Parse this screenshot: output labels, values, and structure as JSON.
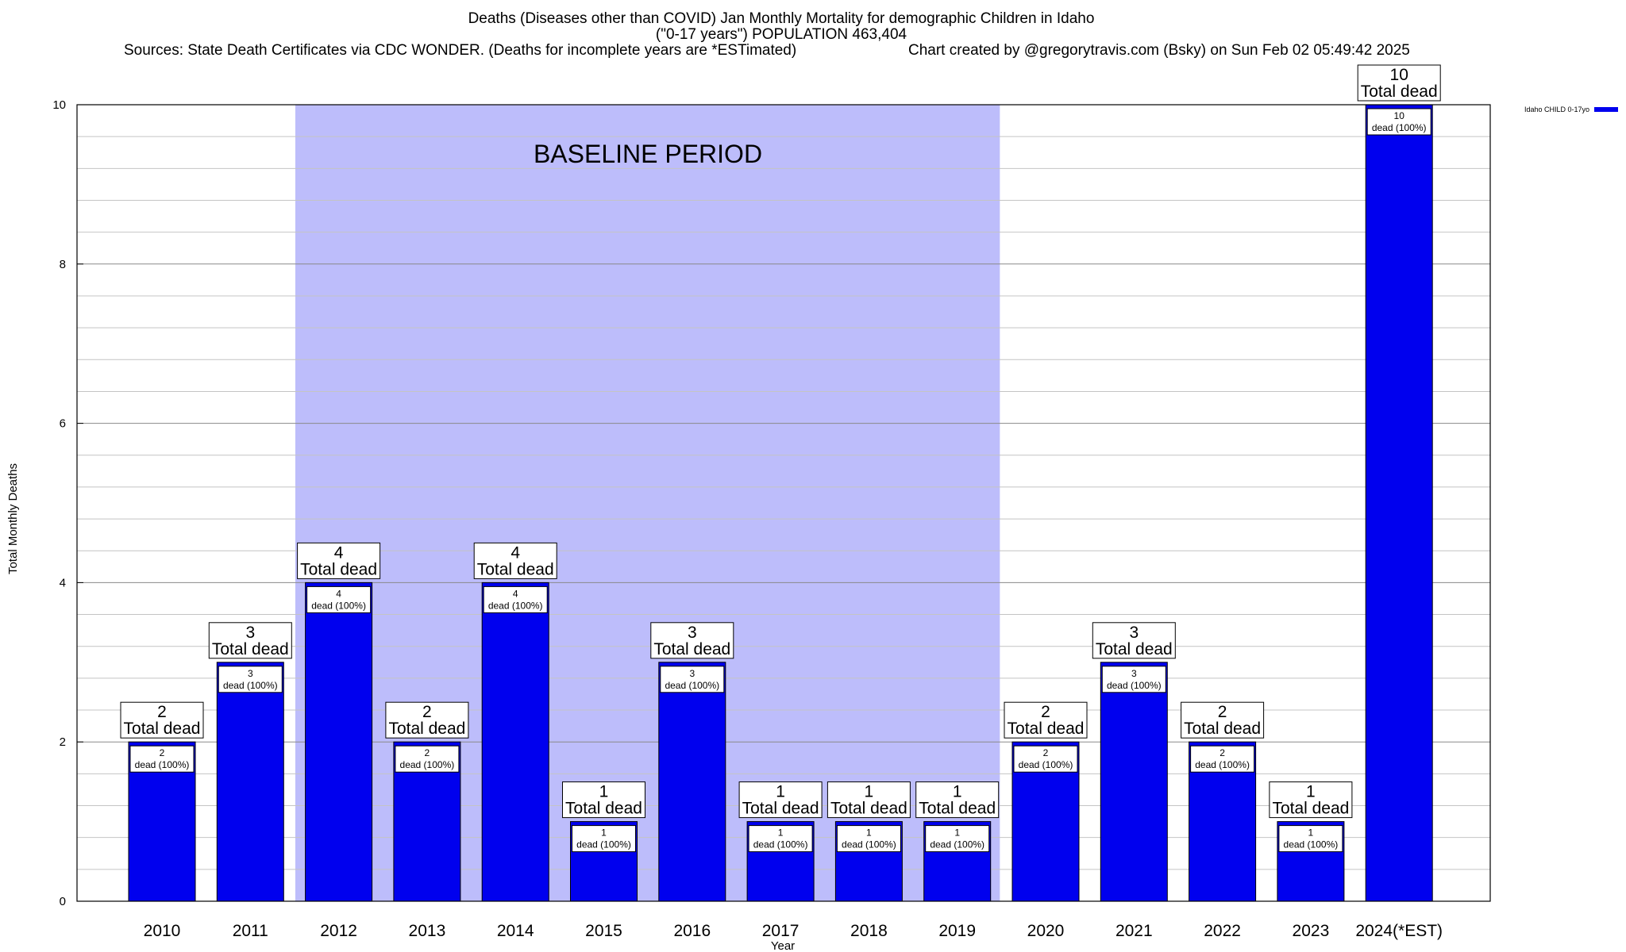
{
  "title": {
    "line1": "Deaths (Diseases other than COVID) Jan Monthly Mortality for demographic Children in Idaho",
    "line2": "(\"0-17 years\") POPULATION 463,404",
    "sources": "Sources: State Death Certificates via CDC WONDER. (Deaths for incomplete years are *ESTimated)",
    "credit": "Chart created by @gregorytravis.com (Bsky) on Sun Feb 02 05:49:42 2025"
  },
  "legend": {
    "label": "Idaho CHILD 0-17yo",
    "color": "#0000ee"
  },
  "baseline": {
    "label": "BASELINE PERIOD",
    "from": "2012",
    "to": "2019",
    "color": "#bdbdfb"
  },
  "box_text": {
    "total": "Total dead",
    "inner_suffix": "dead (100%)"
  },
  "chart_data": {
    "type": "bar",
    "categories": [
      "2010",
      "2011",
      "2012",
      "2013",
      "2014",
      "2015",
      "2016",
      "2017",
      "2018",
      "2019",
      "2020",
      "2021",
      "2022",
      "2023",
      "2024(*EST)"
    ],
    "series": [
      {
        "name": "Idaho CHILD 0-17yo",
        "values": [
          2,
          3,
          4,
          2,
          4,
          1,
          3,
          1,
          1,
          1,
          2,
          3,
          2,
          1,
          10
        ]
      }
    ],
    "xlabel": "Year",
    "ylabel": "Total Monthly Deaths",
    "ylim": [
      0,
      10
    ],
    "yticks": [
      0,
      2,
      4,
      6,
      8,
      10
    ],
    "grid": true,
    "legend_position": "top-right"
  }
}
